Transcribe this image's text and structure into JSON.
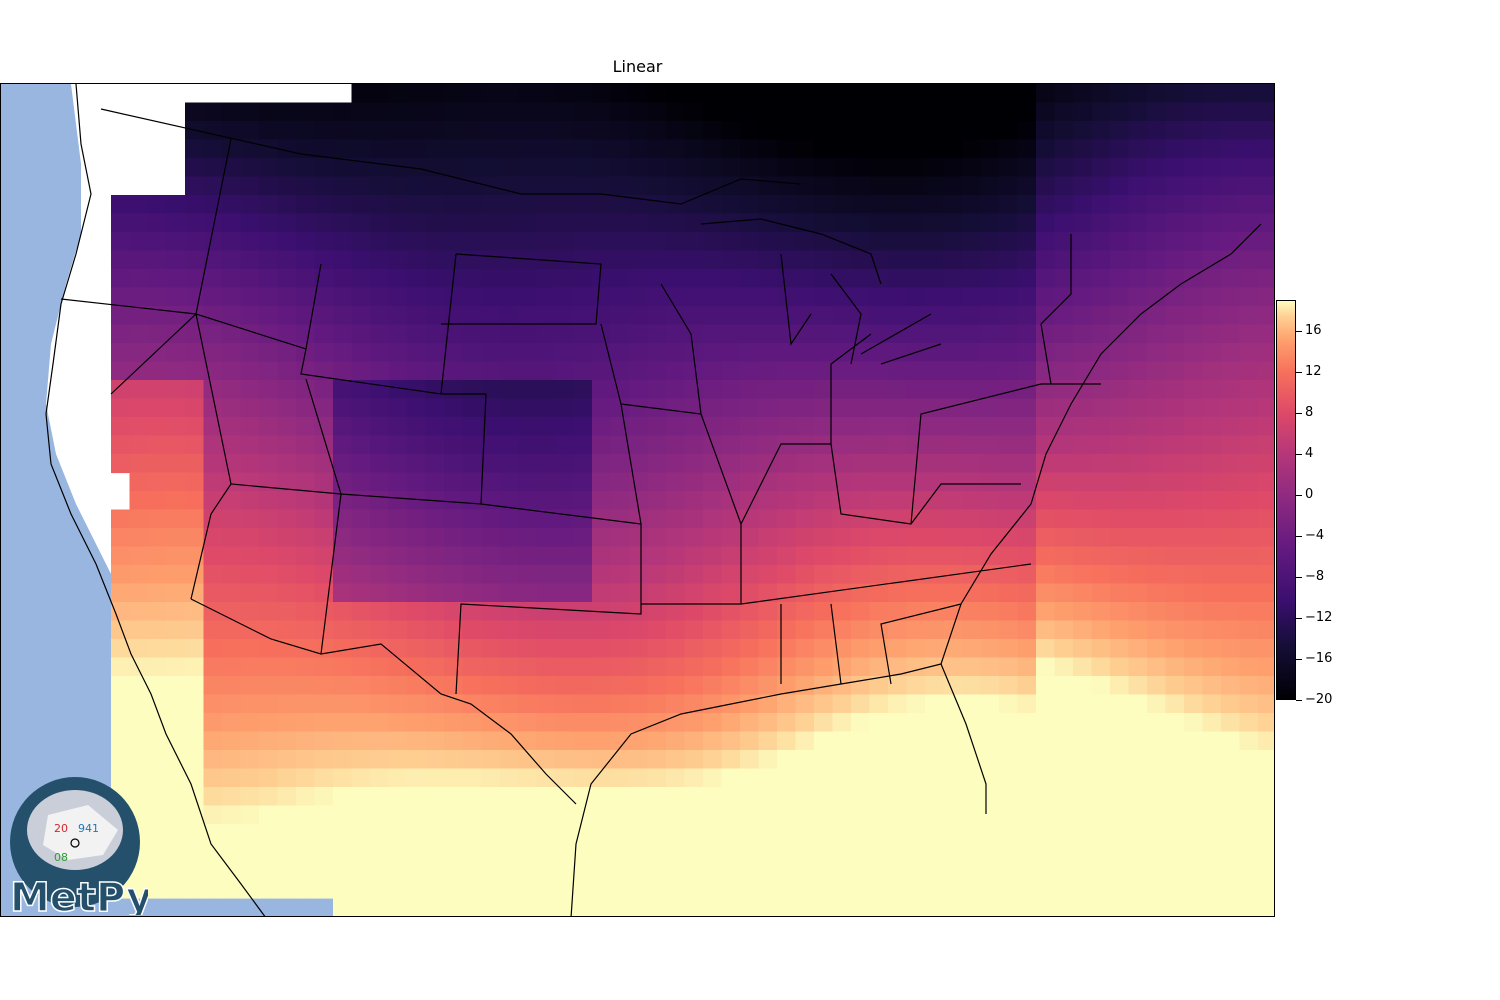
{
  "title": "Linear",
  "colorbar": {
    "colormap": "magma",
    "min": -20,
    "max": 19,
    "ticks": [
      "16",
      "12",
      "8",
      "4",
      "0",
      "−4",
      "−8",
      "−12",
      "−16",
      "−20"
    ],
    "tick_values": [
      16,
      12,
      8,
      4,
      0,
      -4,
      -8,
      -12,
      -16,
      -20
    ]
  },
  "map": {
    "ocean_color": "#98b6e0",
    "land_color": "#ffffff",
    "field": "interpolated temperature grid (linear)"
  },
  "logo": {
    "text": "MetPy",
    "station_plot": {
      "temp": "20",
      "pressure": "941",
      "dewpoint": "08"
    }
  }
}
